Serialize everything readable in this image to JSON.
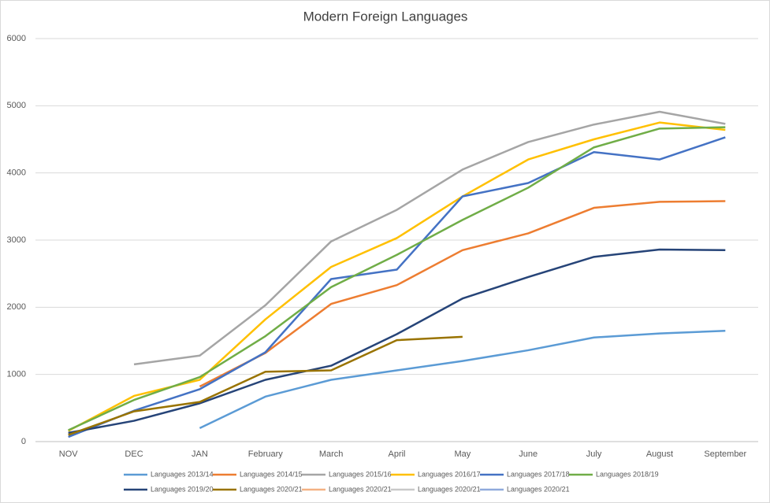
{
  "chart_data": {
    "type": "line",
    "title": "Modern Foreign Languages",
    "categories": [
      "NOV",
      "DEC",
      "JAN",
      "February",
      "March",
      "April",
      "May",
      "June",
      "July",
      "August",
      "September"
    ],
    "ylim": [
      0,
      6000
    ],
    "yticks": [
      0,
      1000,
      2000,
      3000,
      4000,
      5000,
      6000
    ],
    "grid": true,
    "legend": "bottom",
    "series": [
      {
        "name": "Languages 2013/14",
        "color": "#5b9bd5",
        "values": [
          null,
          null,
          200,
          670,
          920,
          1060,
          1200,
          1360,
          1550,
          1610,
          1650
        ]
      },
      {
        "name": "Languages 2014/15",
        "color": "#ed7d31",
        "values": [
          null,
          null,
          820,
          1320,
          2050,
          2330,
          2850,
          3100,
          3480,
          3570,
          3580
        ]
      },
      {
        "name": "Languages 2015/16",
        "color": "#a5a5a5",
        "values": [
          null,
          1150,
          1280,
          2030,
          2980,
          3450,
          4050,
          4460,
          4720,
          4910,
          4730
        ]
      },
      {
        "name": "Languages 2016/17",
        "color": "#ffc000",
        "values": [
          160,
          680,
          920,
          1820,
          2600,
          3030,
          3650,
          4200,
          4500,
          4750,
          4640
        ]
      },
      {
        "name": "Languages 2017/18",
        "color": "#4472c4",
        "values": [
          70,
          460,
          780,
          1330,
          2420,
          2560,
          3650,
          3850,
          4310,
          4200,
          4530
        ]
      },
      {
        "name": "Languages 2018/19",
        "color": "#70ad47",
        "values": [
          170,
          620,
          960,
          1570,
          2300,
          2780,
          3300,
          3780,
          4380,
          4660,
          4680
        ]
      },
      {
        "name": "Languages 2019/20",
        "color": "#264478",
        "values": [
          130,
          310,
          570,
          920,
          1130,
          1600,
          2130,
          2450,
          2750,
          2860,
          2850
        ]
      },
      {
        "name": "Languages 2020/21",
        "color": "#997300",
        "values": [
          100,
          450,
          590,
          1040,
          1060,
          1510,
          1560,
          null,
          null,
          null,
          null
        ]
      },
      {
        "name": "Languages 2020/21",
        "color": "#f4b183",
        "values": [
          null,
          null,
          null,
          null,
          null,
          null,
          null,
          null,
          null,
          null,
          null
        ]
      },
      {
        "name": "Languages 2020/21",
        "color": "#c9c9c9",
        "values": [
          null,
          null,
          null,
          null,
          null,
          null,
          null,
          null,
          null,
          null,
          null
        ]
      },
      {
        "name": "Languages 2020/21",
        "color": "#8faadc",
        "values": [
          null,
          null,
          null,
          null,
          null,
          null,
          null,
          null,
          null,
          null,
          null
        ]
      }
    ]
  }
}
